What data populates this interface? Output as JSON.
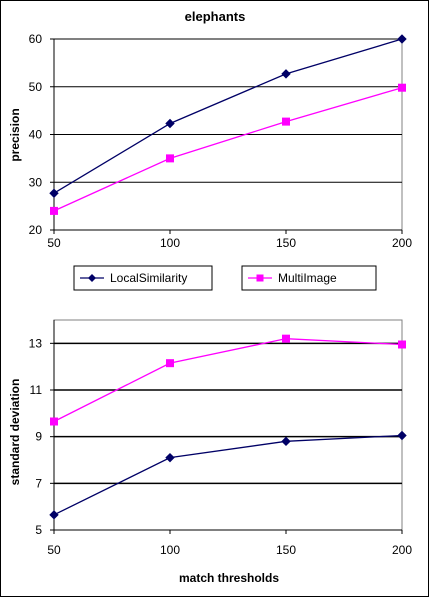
{
  "chart_data": [
    {
      "type": "line",
      "title": "elephants",
      "xlabel": "",
      "ylabel": "precision",
      "x": [
        50,
        100,
        150,
        200
      ],
      "xlim": [
        50,
        200
      ],
      "ylim": [
        20,
        60
      ],
      "yticks": [
        20,
        30,
        40,
        50,
        60
      ],
      "grid": "horizontal",
      "series": [
        {
          "name": "LocalSimilarity",
          "color": "#000066",
          "marker": "diamond",
          "values": [
            27.7,
            42.3,
            52.7,
            60.0
          ]
        },
        {
          "name": "MultiImage",
          "color": "#ff00ff",
          "marker": "square",
          "values": [
            24.0,
            35.0,
            42.7,
            49.8
          ]
        }
      ],
      "legend": "below"
    },
    {
      "type": "line",
      "title": "",
      "xlabel": "match thresholds",
      "ylabel": "standard deviation",
      "x": [
        50,
        100,
        150,
        200
      ],
      "xlim": [
        50,
        200
      ],
      "ylim": [
        5,
        14
      ],
      "yticks": [
        5,
        7,
        9,
        11,
        13
      ],
      "grid": "horizontal",
      "series": [
        {
          "name": "LocalSimilarity",
          "color": "#000066",
          "marker": "diamond",
          "values": [
            5.65,
            8.1,
            8.8,
            9.05
          ]
        },
        {
          "name": "MultiImage",
          "color": "#ff00ff",
          "marker": "square",
          "values": [
            9.65,
            12.15,
            13.2,
            12.95
          ]
        }
      ]
    }
  ]
}
